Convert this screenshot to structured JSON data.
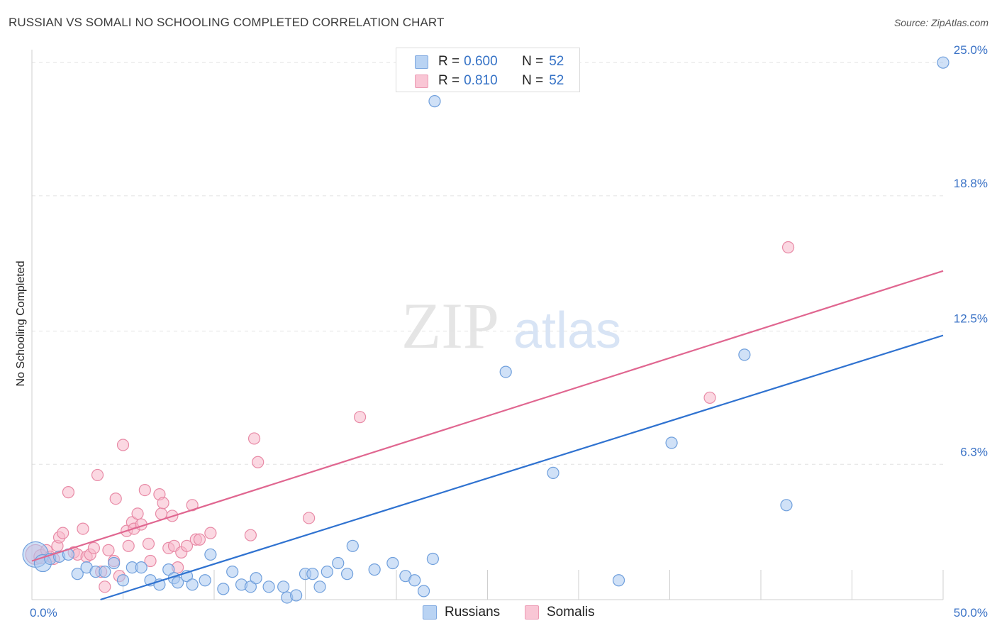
{
  "title": "RUSSIAN VS SOMALI NO SCHOOLING COMPLETED CORRELATION CHART",
  "source": "Source: ZipAtlas.com",
  "watermark": {
    "zip": "ZIP",
    "atlas": "atlas"
  },
  "colors": {
    "russians_fill": "#a9c8f0",
    "russians_stroke": "#6f9fdc",
    "russians_line": "#2f72d0",
    "somalis_fill": "#f7b8cb",
    "somalis_stroke": "#e88aa6",
    "somalis_line": "#e06690",
    "grid": "#e2e2e2",
    "tick_label": "#3a72c6"
  },
  "legend": {
    "russians": {
      "r_label": "R =",
      "r_value": "0.600",
      "n_label": "N =",
      "n_value": "52"
    },
    "somalis": {
      "r_label": "R =",
      "r_value": "0.810",
      "n_label": "N =",
      "n_value": "52"
    }
  },
  "chart_data": {
    "type": "scatter",
    "title": "RUSSIAN VS SOMALI NO SCHOOLING COMPLETED CORRELATION CHART",
    "xlabel": "",
    "ylabel": "No Schooling Completed",
    "xlim": [
      0,
      50
    ],
    "ylim": [
      0,
      25.6
    ],
    "x_ticks": [
      0,
      5,
      10,
      15,
      20,
      25,
      30,
      35,
      40,
      45,
      50
    ],
    "x_tick_labels": [
      {
        "x": 0,
        "label": "0.0%"
      },
      {
        "x": 50,
        "label": "50.0%"
      }
    ],
    "y_ticks": [
      6.3,
      12.5,
      18.8,
      25.0
    ],
    "y_tick_labels": [
      "6.3%",
      "12.5%",
      "18.8%",
      "25.0%"
    ],
    "grid": true,
    "legend_position": "top-center",
    "series": [
      {
        "name": "Russians",
        "r": 0.6,
        "n": 52,
        "trend": {
          "x0": 0,
          "y0": -1.0,
          "x1": 50,
          "y1": 12.3
        },
        "points": [
          [
            0.2,
            2.1,
            18
          ],
          [
            0.6,
            1.7,
            12
          ],
          [
            1.0,
            1.9,
            8
          ],
          [
            1.5,
            2.0,
            8
          ],
          [
            2.0,
            2.1,
            8
          ],
          [
            2.5,
            1.2,
            8
          ],
          [
            3.0,
            1.5,
            8
          ],
          [
            3.5,
            1.3,
            8
          ],
          [
            4.0,
            1.3,
            8
          ],
          [
            4.5,
            1.7,
            8
          ],
          [
            5.0,
            0.9,
            8
          ],
          [
            5.5,
            1.5,
            8
          ],
          [
            6.0,
            1.5,
            8
          ],
          [
            6.5,
            0.9,
            8
          ],
          [
            7.0,
            0.7,
            8
          ],
          [
            7.5,
            1.4,
            8
          ],
          [
            7.8,
            1.0,
            8
          ],
          [
            8.0,
            0.8,
            8
          ],
          [
            8.5,
            1.1,
            8
          ],
          [
            8.8,
            0.7,
            8
          ],
          [
            9.5,
            0.9,
            8
          ],
          [
            9.8,
            2.1,
            8
          ],
          [
            10.5,
            0.5,
            8
          ],
          [
            11.0,
            1.3,
            8
          ],
          [
            11.5,
            0.7,
            8
          ],
          [
            12.0,
            0.6,
            8
          ],
          [
            12.3,
            1.0,
            8
          ],
          [
            13.0,
            0.6,
            8
          ],
          [
            13.8,
            0.6,
            8
          ],
          [
            14.0,
            0.1,
            8
          ],
          [
            14.5,
            0.2,
            8
          ],
          [
            15.0,
            1.2,
            8
          ],
          [
            15.4,
            1.2,
            8
          ],
          [
            15.8,
            0.6,
            8
          ],
          [
            16.2,
            1.3,
            8
          ],
          [
            16.8,
            1.7,
            8
          ],
          [
            17.3,
            1.2,
            8
          ],
          [
            17.6,
            2.5,
            8
          ],
          [
            18.8,
            1.4,
            8
          ],
          [
            19.8,
            1.7,
            8
          ],
          [
            20.5,
            1.1,
            8
          ],
          [
            21.0,
            0.9,
            8
          ],
          [
            21.5,
            0.4,
            8
          ],
          [
            22.0,
            1.9,
            8
          ],
          [
            22.1,
            23.2,
            8
          ],
          [
            26.0,
            10.6,
            8
          ],
          [
            28.6,
            5.9,
            8
          ],
          [
            32.2,
            0.9,
            8
          ],
          [
            35.1,
            7.3,
            8
          ],
          [
            39.1,
            11.4,
            8
          ],
          [
            41.4,
            4.4,
            8
          ],
          [
            50.0,
            25.0,
            8
          ]
        ]
      },
      {
        "name": "Somalis",
        "r": 0.81,
        "n": 52,
        "trend": {
          "x0": 0,
          "y0": 1.8,
          "x1": 50,
          "y1": 15.3
        },
        "points": [
          [
            0.2,
            2.1,
            14
          ],
          [
            0.5,
            2.0,
            10
          ],
          [
            0.8,
            2.3,
            8
          ],
          [
            1.0,
            2.0,
            8
          ],
          [
            1.2,
            1.9,
            8
          ],
          [
            1.4,
            2.5,
            8
          ],
          [
            1.5,
            2.9,
            8
          ],
          [
            1.7,
            3.1,
            8
          ],
          [
            2.0,
            5.0,
            8
          ],
          [
            2.3,
            2.2,
            8
          ],
          [
            2.5,
            2.1,
            8
          ],
          [
            2.8,
            3.3,
            8
          ],
          [
            3.0,
            2.0,
            8
          ],
          [
            3.2,
            2.1,
            8
          ],
          [
            3.4,
            2.4,
            8
          ],
          [
            3.6,
            5.8,
            8
          ],
          [
            3.8,
            1.3,
            8
          ],
          [
            4.0,
            0.6,
            8
          ],
          [
            4.2,
            2.3,
            8
          ],
          [
            4.5,
            1.8,
            8
          ],
          [
            4.6,
            4.7,
            8
          ],
          [
            4.8,
            1.1,
            8
          ],
          [
            5.0,
            7.2,
            8
          ],
          [
            5.2,
            3.2,
            8
          ],
          [
            5.3,
            2.5,
            8
          ],
          [
            5.5,
            3.6,
            8
          ],
          [
            5.6,
            3.3,
            8
          ],
          [
            5.8,
            4.0,
            8
          ],
          [
            6.0,
            3.5,
            8
          ],
          [
            6.2,
            5.1,
            8
          ],
          [
            6.4,
            2.6,
            8
          ],
          [
            6.5,
            1.8,
            8
          ],
          [
            7.0,
            4.9,
            8
          ],
          [
            7.1,
            4.0,
            8
          ],
          [
            7.2,
            4.5,
            8
          ],
          [
            7.5,
            2.4,
            8
          ],
          [
            7.7,
            3.9,
            8
          ],
          [
            7.8,
            2.5,
            8
          ],
          [
            8.0,
            1.5,
            8
          ],
          [
            8.2,
            2.2,
            8
          ],
          [
            8.5,
            2.5,
            8
          ],
          [
            8.8,
            4.4,
            8
          ],
          [
            9.0,
            2.8,
            8
          ],
          [
            9.2,
            2.8,
            8
          ],
          [
            9.8,
            3.1,
            8
          ],
          [
            12.0,
            3.0,
            8
          ],
          [
            12.2,
            7.5,
            8
          ],
          [
            12.4,
            6.4,
            8
          ],
          [
            15.2,
            3.8,
            8
          ],
          [
            18.0,
            8.5,
            8
          ],
          [
            37.2,
            9.4,
            8
          ],
          [
            41.5,
            16.4,
            8
          ]
        ]
      }
    ]
  }
}
